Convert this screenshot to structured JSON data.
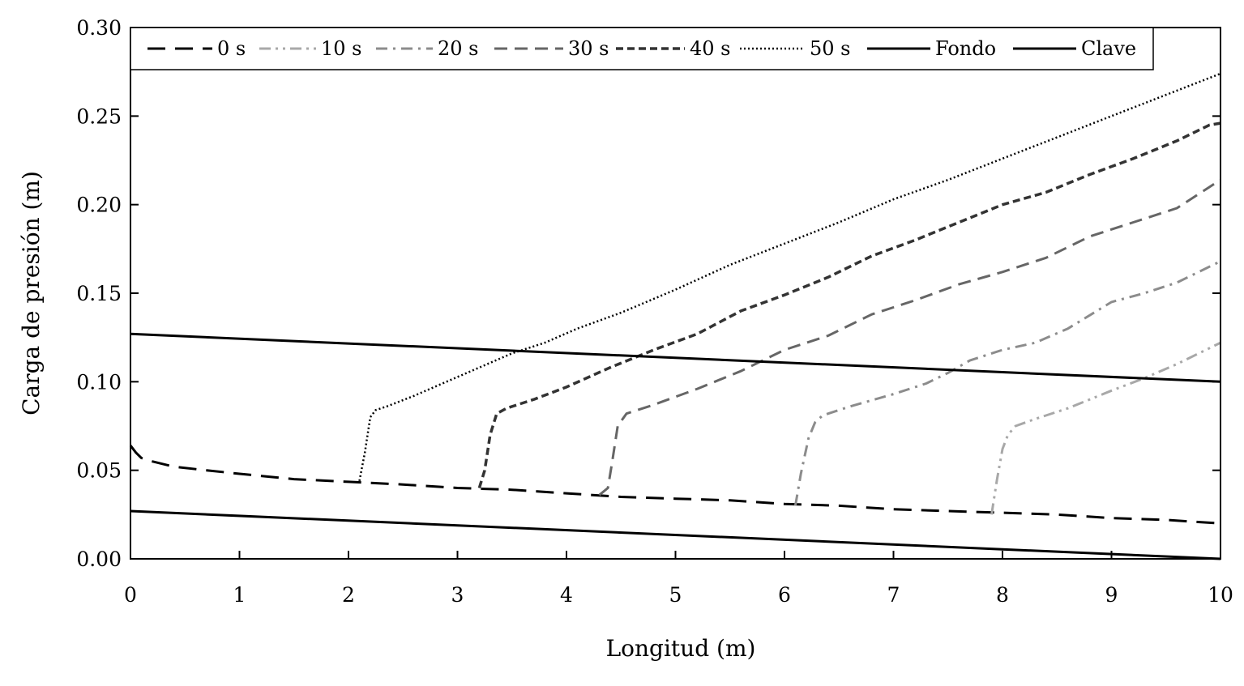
{
  "chart_data": {
    "type": "line",
    "title": "",
    "xlabel": "Longitud (m)",
    "ylabel": "Carga de presión (m)",
    "xlim": [
      0,
      10
    ],
    "ylim": [
      0,
      0.3
    ],
    "xticks": [
      0,
      1,
      2,
      3,
      4,
      5,
      6,
      7,
      8,
      9,
      10
    ],
    "xtick_labels": [
      "0",
      "1",
      "2",
      "3",
      "4",
      "5",
      "6",
      "7",
      "8",
      "9",
      "10"
    ],
    "yticks": [
      0,
      0.05,
      0.1,
      0.15,
      0.2,
      0.25,
      0.3
    ],
    "ytick_labels": [
      "0.00",
      "0.05",
      "0.10",
      "0.15",
      "0.20",
      "0.25",
      "0.30"
    ],
    "grid": false,
    "legend": {
      "placement": "top",
      "columns": 8
    },
    "series": [
      {
        "name": "0 s",
        "color": "#000000",
        "style": "long-dash",
        "x": [
          0,
          0.05,
          0.1,
          0.2,
          0.4,
          0.7,
          1,
          1.5,
          2,
          2.5,
          3,
          3.5,
          4,
          4.5,
          5,
          5.5,
          6,
          6.5,
          7,
          7.5,
          8,
          8.5,
          9,
          9.5,
          10
        ],
        "y": [
          0.064,
          0.06,
          0.057,
          0.055,
          0.052,
          0.05,
          0.048,
          0.045,
          0.0435,
          0.042,
          0.04,
          0.039,
          0.037,
          0.035,
          0.034,
          0.033,
          0.031,
          0.03,
          0.028,
          0.027,
          0.026,
          0.025,
          0.023,
          0.022,
          0.02
        ]
      },
      {
        "name": "10 s",
        "color": "#a8a8a8",
        "style": "dash-dot-dot",
        "x": [
          7.9,
          7.95,
          8.0,
          8.05,
          8.12,
          8.3,
          8.6,
          9.0,
          9.3,
          9.6,
          10.0
        ],
        "y": [
          0.025,
          0.045,
          0.062,
          0.07,
          0.075,
          0.079,
          0.085,
          0.095,
          0.102,
          0.11,
          0.122
        ]
      },
      {
        "name": "20 s",
        "color": "#8c8c8c",
        "style": "dash-dot",
        "x": [
          6.1,
          6.15,
          6.22,
          6.28,
          6.35,
          6.6,
          7.0,
          7.3,
          7.5,
          7.7,
          8.0,
          8.3,
          8.6,
          9.0,
          9.3,
          9.6,
          10.0
        ],
        "y": [
          0.03,
          0.048,
          0.068,
          0.077,
          0.081,
          0.086,
          0.093,
          0.099,
          0.105,
          0.112,
          0.118,
          0.122,
          0.13,
          0.145,
          0.15,
          0.156,
          0.168
        ]
      },
      {
        "name": "30 s",
        "color": "#666666",
        "style": "medium-dash",
        "x": [
          4.3,
          4.38,
          4.42,
          4.47,
          4.55,
          4.8,
          5.2,
          5.6,
          6.0,
          6.4,
          6.8,
          7.2,
          7.6,
          8.0,
          8.4,
          8.8,
          9.2,
          9.6,
          10.0
        ],
        "y": [
          0.036,
          0.04,
          0.055,
          0.075,
          0.082,
          0.087,
          0.096,
          0.106,
          0.118,
          0.126,
          0.138,
          0.146,
          0.155,
          0.162,
          0.17,
          0.182,
          0.19,
          0.198,
          0.214
        ]
      },
      {
        "name": "40 s",
        "color": "#333333",
        "style": "short-dash",
        "x": [
          3.2,
          3.25,
          3.3,
          3.36,
          3.45,
          3.7,
          4.0,
          4.4,
          4.8,
          5.2,
          5.6,
          6.0,
          6.4,
          6.8,
          7.2,
          7.6,
          8.0,
          8.4,
          8.8,
          9.2,
          9.6,
          9.9,
          10.0
        ],
        "y": [
          0.04,
          0.05,
          0.07,
          0.082,
          0.085,
          0.09,
          0.097,
          0.108,
          0.118,
          0.127,
          0.14,
          0.149,
          0.159,
          0.171,
          0.18,
          0.19,
          0.2,
          0.207,
          0.217,
          0.226,
          0.236,
          0.245,
          0.246
        ]
      },
      {
        "name": "50 s",
        "color": "#000000",
        "style": "dotted",
        "x": [
          2.1,
          2.15,
          2.2,
          2.25,
          2.35,
          2.6,
          2.9,
          3.2,
          3.5,
          3.8,
          4.1,
          4.5,
          5.0,
          5.5,
          6.0,
          6.5,
          7.0,
          7.5,
          8.0,
          8.5,
          9.0,
          9.5,
          10.0
        ],
        "y": [
          0.044,
          0.06,
          0.08,
          0.084,
          0.086,
          0.092,
          0.1,
          0.108,
          0.116,
          0.122,
          0.13,
          0.139,
          0.152,
          0.166,
          0.178,
          0.19,
          0.203,
          0.214,
          0.226,
          0.238,
          0.25,
          0.262,
          0.274
        ]
      },
      {
        "name": "Fondo",
        "color": "#000000",
        "style": "solid",
        "x": [
          0,
          10
        ],
        "y": [
          0.027,
          0.0
        ]
      },
      {
        "name": "Clave",
        "color": "#000000",
        "style": "solid",
        "x": [
          0,
          10
        ],
        "y": [
          0.127,
          0.1
        ]
      }
    ]
  }
}
